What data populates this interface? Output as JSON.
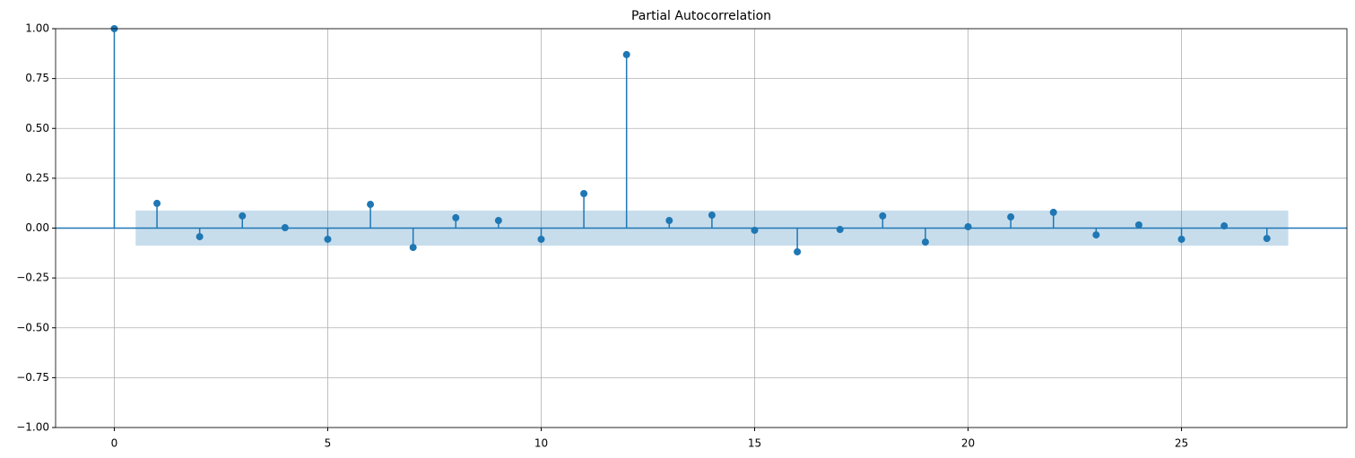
{
  "chart_data": {
    "type": "stem",
    "title": "Partial Autocorrelation",
    "color": "#1f77b4",
    "grid": true,
    "x": [
      0,
      1,
      2,
      3,
      4,
      5,
      6,
      7,
      8,
      9,
      10,
      11,
      12,
      13,
      14,
      15,
      16,
      17,
      18,
      19,
      20,
      21,
      22,
      23,
      24,
      25,
      26,
      27
    ],
    "values": [
      1.0,
      0.124,
      -0.043,
      0.061,
      0.002,
      -0.056,
      0.119,
      -0.097,
      0.052,
      0.038,
      -0.056,
      0.173,
      0.87,
      0.038,
      0.065,
      -0.011,
      -0.119,
      -0.007,
      0.061,
      -0.07,
      0.007,
      0.056,
      0.079,
      -0.034,
      0.016,
      -0.056,
      0.011,
      -0.052
    ],
    "band_x": [
      0.5,
      27.5
    ],
    "band_upper": 0.088,
    "band_lower": -0.088,
    "xlim": [
      -1.375,
      28.875
    ],
    "xticks": [
      0,
      5,
      10,
      15,
      20,
      25
    ],
    "ylim": [
      -1,
      1
    ],
    "yticks": [
      {
        "value": -1,
        "label": "−1.00"
      },
      {
        "value": -0.75,
        "label": "−0.75"
      },
      {
        "value": -0.5,
        "label": "−0.50"
      },
      {
        "value": -0.25,
        "label": "−0.25"
      },
      {
        "value": 0,
        "label": "0.00"
      },
      {
        "value": 0.25,
        "label": "0.25"
      },
      {
        "value": 0.5,
        "label": "0.50"
      },
      {
        "value": 0.75,
        "label": "0.75"
      },
      {
        "value": 1,
        "label": "1.00"
      }
    ]
  }
}
